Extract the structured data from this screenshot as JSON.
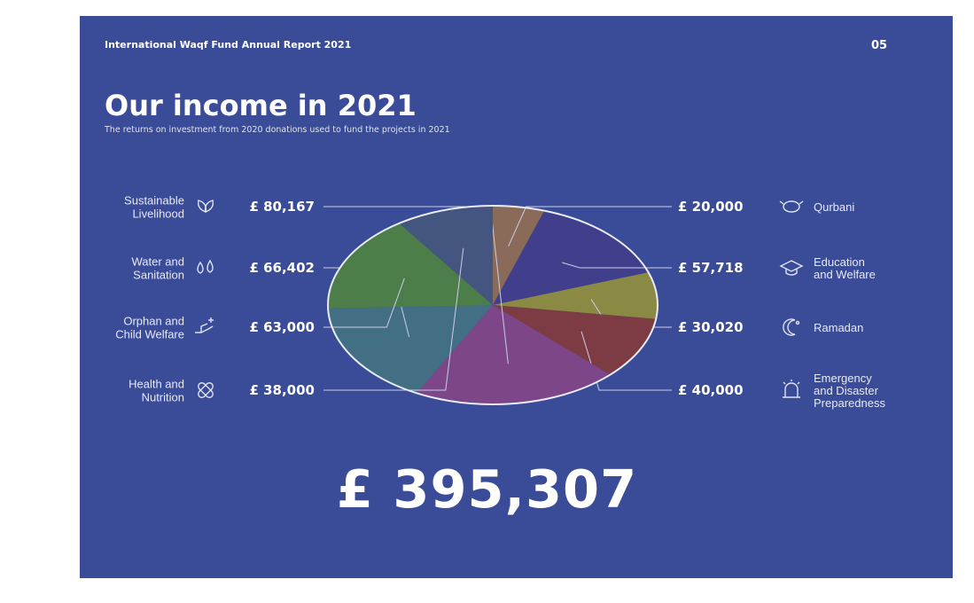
{
  "report_title": "International Waqf Fund Annual Report 2021",
  "page_number": "05",
  "title": "Our income in 2021",
  "subtitle": "The returns on investment from 2020 donations used to fund the projects in 2021",
  "total": "£ 395,307",
  "colors": {
    "background": "#3a4b98",
    "page": "#ffffff",
    "pie_outline": "#e9ecf5"
  },
  "chart_data": {
    "type": "pie",
    "title": "Our income in 2021",
    "currency": "£",
    "total": 395307,
    "slices": [
      {
        "name": "Qurbani",
        "lines": [
          "Qurbani"
        ],
        "value": 20000,
        "value_label": "£ 20,000",
        "color": "#8a6b5a",
        "icon": "sheep-icon",
        "side": "right"
      },
      {
        "name": "Education and Welfare",
        "lines": [
          "Education",
          "and Welfare"
        ],
        "value": 57718,
        "value_label": "£ 57,718",
        "color": "#413e8c",
        "icon": "graduation-cap-icon",
        "side": "right"
      },
      {
        "name": "Ramadan",
        "lines": [
          "Ramadan"
        ],
        "value": 30020,
        "value_label": "£ 30,020",
        "color": "#8a8a45",
        "icon": "crescent-moon-icon",
        "side": "right"
      },
      {
        "name": "Emergency and Disaster Preparedness",
        "lines": [
          "Emergency",
          "and Disaster",
          "Preparedness"
        ],
        "value": 40000,
        "value_label": "£ 40,000",
        "color": "#7d3c44",
        "icon": "siren-icon",
        "side": "right"
      },
      {
        "name": "Sustainable Livelihood",
        "lines": [
          "Sustainable",
          "Livelihood"
        ],
        "value": 80167,
        "value_label": "£ 80,167",
        "color": "#7d4689",
        "icon": "leaves-icon",
        "side": "left"
      },
      {
        "name": "Water and Sanitation",
        "lines": [
          "Water and",
          "Sanitation"
        ],
        "value": 66402,
        "value_label": "£ 66,402",
        "color": "#436f84",
        "icon": "water-drops-icon",
        "side": "left"
      },
      {
        "name": "Orphan and Child Welfare",
        "lines": [
          "Orphan and",
          "Child Welfare"
        ],
        "value": 63000,
        "value_label": "£ 63,000",
        "color": "#4d7d48",
        "icon": "helping-hand-icon",
        "side": "left"
      },
      {
        "name": "Health and Nutrition",
        "lines": [
          "Health and",
          "Nutrition"
        ],
        "value": 38000,
        "value_label": "£ 38,000",
        "color": "#44557f",
        "icon": "bandage-icon",
        "side": "left"
      }
    ]
  }
}
